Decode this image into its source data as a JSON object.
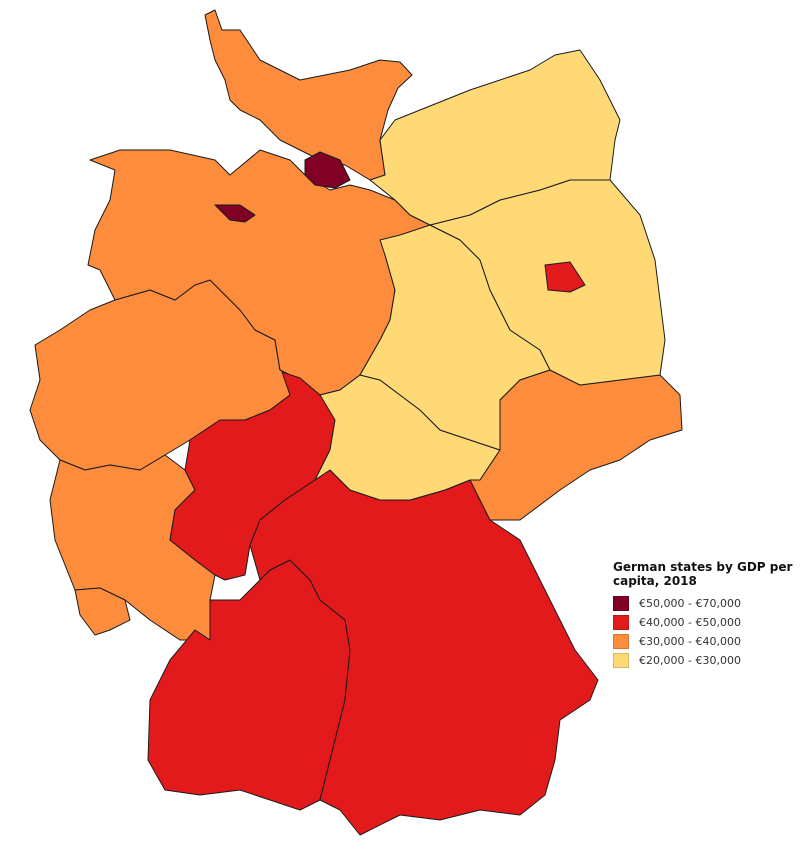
{
  "legend": {
    "title": "German states by GDP per capita, 2018",
    "items": [
      {
        "label": "€50,000 - €70,000",
        "color": "#800026"
      },
      {
        "label": "€40,000 - €50,000",
        "color": "#e31a1c"
      },
      {
        "label": "€30,000 - €40,000",
        "color": "#fd8d3c"
      },
      {
        "label": "€20,000 - €30,000",
        "color": "#fed976"
      }
    ]
  },
  "states": [
    {
      "id": "nordrhein-westfalen",
      "class": 2
    },
    {
      "id": "niedersachsen",
      "class": 2
    },
    {
      "id": "schleswig-holstein",
      "class": 2
    },
    {
      "id": "rheinland-pfalz",
      "class": 2
    },
    {
      "id": "saarland",
      "class": 2
    },
    {
      "id": "hessen",
      "class": 1
    },
    {
      "id": "baden-wuerttemberg",
      "class": 1
    },
    {
      "id": "bayern",
      "class": 1
    },
    {
      "id": "thueringen",
      "class": 3
    },
    {
      "id": "sachsen-anhalt",
      "class": 3
    },
    {
      "id": "sachsen",
      "class": 2
    },
    {
      "id": "brandenburg",
      "class": 3
    },
    {
      "id": "mecklenburg-vorpommern",
      "class": 3
    },
    {
      "id": "berlin",
      "class": 1
    },
    {
      "id": "hamburg",
      "class": 0
    },
    {
      "id": "bremen",
      "class": 0
    }
  ]
}
